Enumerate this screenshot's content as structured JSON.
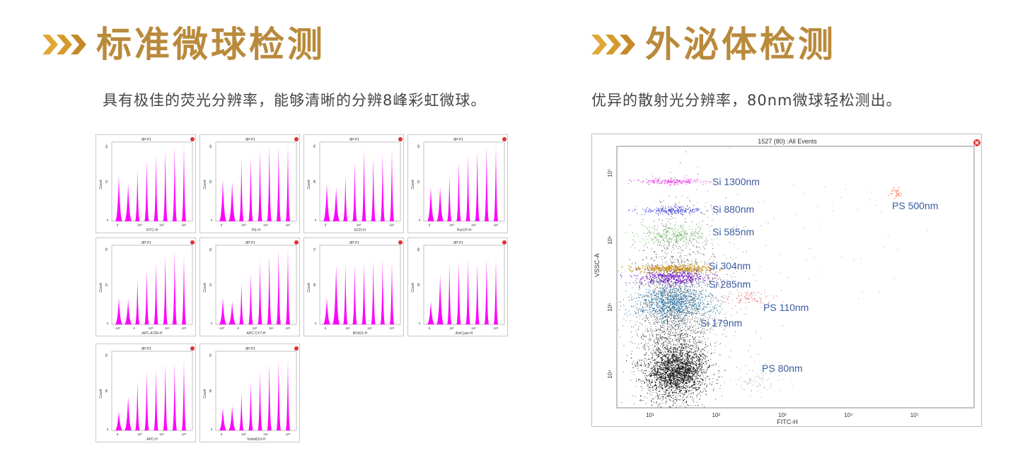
{
  "left": {
    "title": "标准微球检测",
    "subtitle": "具有极佳的荧光分辨率，能够清晰的分辨8峰彩虹微球。",
    "panels": [
      {
        "title": "8P:P1",
        "xlabel": "FITC-H",
        "ymax": "61",
        "ymid": "31",
        "ticks": [
          "0",
          "10³",
          "10⁴",
          "10⁵"
        ],
        "peaks": [
          0.6,
          0.5,
          0.68,
          0.82,
          0.88,
          0.95,
          1.0,
          1.0
        ]
      },
      {
        "title": "8P:P1",
        "xlabel": "PE-H",
        "ymax": "64",
        "ymid": "32",
        "ticks": [
          "0",
          "10³",
          "10⁴",
          "10⁵"
        ],
        "peaks": [
          0.55,
          0.52,
          0.82,
          0.86,
          0.95,
          1.0,
          1.0,
          1.0
        ]
      },
      {
        "title": "8P:P1",
        "xlabel": "ECD-H",
        "ymax": "76",
        "ymid": "38",
        "ticks": [
          "0",
          "10³",
          "10⁴"
        ],
        "peaks": [
          0.5,
          0.45,
          0.6,
          0.8,
          0.95,
          0.85,
          0.9,
          0.95
        ]
      },
      {
        "title": "8P:P1",
        "xlabel": "PerCP-H",
        "ymax": "63",
        "ymid": "32",
        "ticks": [
          "0",
          "10³",
          "10⁴",
          "10⁵"
        ],
        "peaks": [
          0.45,
          0.45,
          0.6,
          0.8,
          0.88,
          0.95,
          1.0,
          1.0
        ]
      },
      {
        "title": "8P:P1",
        "xlabel": "APC-A700-H",
        "ymax": "75",
        "ymid": "37",
        "ticks": [
          "-10³",
          "0",
          "10³",
          "10⁴",
          "10⁵"
        ],
        "peaks": [
          0.35,
          0.33,
          0.6,
          0.72,
          0.82,
          0.92,
          0.98,
          0.9
        ]
      },
      {
        "title": "8P:P1",
        "xlabel": "APC-CY7-H",
        "ymax": "81",
        "ymid": "41",
        "ticks": [
          "-10³",
          "0",
          "10³",
          "10⁴",
          "10⁵"
        ],
        "peaks": [
          0.35,
          0.3,
          0.55,
          0.68,
          0.84,
          0.92,
          1.0,
          1.0
        ]
      },
      {
        "title": "8P:P1",
        "xlabel": "BV421-H",
        "ymax": "71",
        "ymid": "36",
        "ticks": [
          "0",
          "10³",
          "10⁴",
          "10⁵"
        ],
        "peaks": [
          0.35,
          0.78,
          0.8,
          0.8,
          0.82,
          0.84,
          0.86,
          0.84
        ]
      },
      {
        "title": "8P:P1",
        "xlabel": "AmCyan-H",
        "ymax": "60",
        "ymid": "30",
        "ticks": [
          "0",
          "10³",
          "10⁴",
          "10⁵"
        ],
        "peaks": [
          0.3,
          0.65,
          0.8,
          0.84,
          0.86,
          0.82,
          0.88,
          0.86
        ]
      },
      {
        "title": "8P:P1",
        "xlabel": "APC-H",
        "ymax": "70",
        "ymid": "35",
        "ticks": [
          "0",
          "10³",
          "10⁴",
          "10⁵"
        ],
        "peaks": [
          0.25,
          0.45,
          0.65,
          0.78,
          0.8,
          0.88,
          0.9,
          0.92
        ]
      },
      {
        "title": "8P:P1",
        "xlabel": "Violet610-H",
        "ymax": "70",
        "ymid": "35",
        "ticks": [
          "0",
          "10³",
          "10⁴",
          "10⁵"
        ],
        "peaks": [
          0.3,
          0.32,
          0.5,
          0.65,
          0.78,
          0.88,
          0.92,
          0.92
        ]
      }
    ]
  },
  "right": {
    "title": "外泌体检测",
    "subtitle": "优异的散射光分辨率，80nm微球轻松测出。",
    "plot": {
      "header": "1527 (80) :All Events",
      "ylabel": "VSSC-A",
      "xlabel": "FITC-H",
      "yticks": [
        "10⁷",
        "10⁶",
        "10⁵",
        "10⁴"
      ],
      "xticks": [
        "10¹",
        "10²",
        "10³",
        "10⁴",
        "10⁵"
      ]
    },
    "labels": [
      {
        "text": "Si 1300nm",
        "color": "#e040e0"
      },
      {
        "text": "Si 880nm",
        "color": "#3a3ad8"
      },
      {
        "text": "Si 585nm",
        "color": "#7cc070"
      },
      {
        "text": "Si 304nm",
        "color": "#c48a10"
      },
      {
        "text": "Si 285nm",
        "color": "#7a20c8"
      },
      {
        "text": "Si 179nm",
        "color": "#2a7ab0"
      },
      {
        "text": "PS 500nm",
        "color": "#ff7050"
      },
      {
        "text": "PS 110nm",
        "color": "#e06060"
      },
      {
        "text": "PS 80nm",
        "color": "#a0a890"
      }
    ]
  },
  "colors": {
    "gold": "#b98a3c",
    "magenta": "#ff00ff",
    "label_blue": "#3a5ba0"
  }
}
